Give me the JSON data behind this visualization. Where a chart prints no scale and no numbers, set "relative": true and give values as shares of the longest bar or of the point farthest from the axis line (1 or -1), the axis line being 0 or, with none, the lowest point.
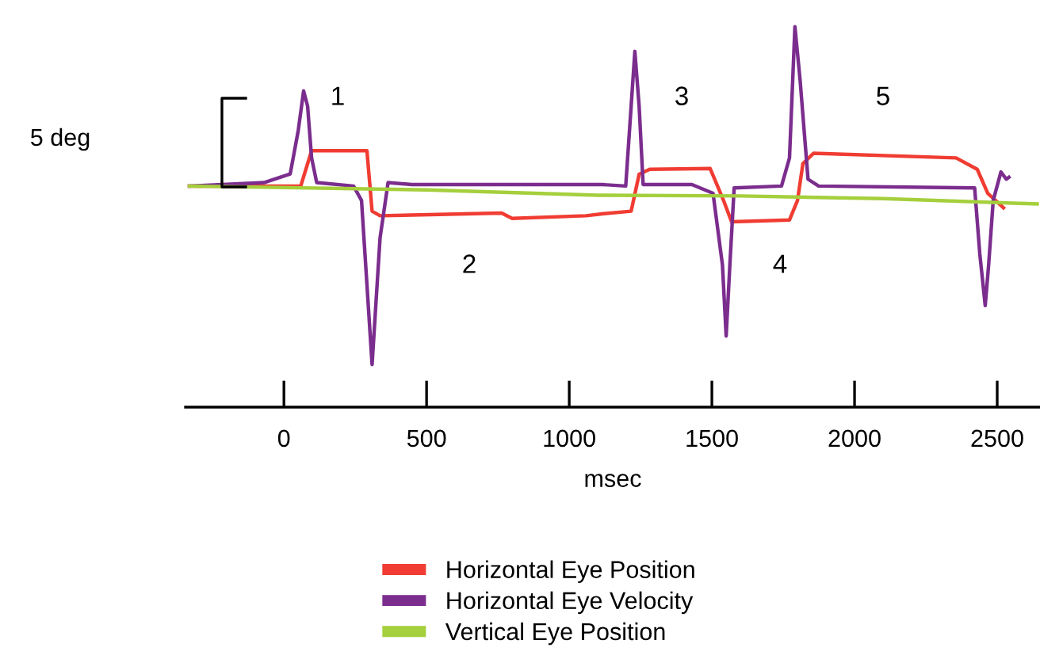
{
  "chart_data": {
    "type": "line",
    "relative": true,
    "xlabel": "msec",
    "xlim": [
      -345,
      2650
    ],
    "xticks": [
      0,
      500,
      1000,
      1500,
      2000,
      2500
    ],
    "tick_labels": "x",
    "legend": "bottom",
    "annotations": [
      "5 deg",
      "1",
      "2",
      "3",
      "4",
      "5"
    ],
    "series": [
      {
        "name": "Horizontal Eye Position",
        "color": "#f03c32",
        "x": [
          -331,
          59,
          97,
          291,
          309,
          337,
          763,
          800,
          1059,
          1115,
          1217,
          1245,
          1282,
          1494,
          1541,
          1569,
          1772,
          1800,
          1819,
          1856,
          2356,
          2430,
          2467,
          2522
        ],
        "values": [
          0.581,
          0.581,
          0.674,
          0.674,
          0.515,
          0.503,
          0.51,
          0.496,
          0.503,
          0.508,
          0.515,
          0.612,
          0.625,
          0.627,
          0.543,
          0.487,
          0.492,
          0.543,
          0.64,
          0.667,
          0.655,
          0.625,
          0.562,
          0.524
        ]
      },
      {
        "name": "Horizontal Eye Velocity",
        "color": "#7b2d8e",
        "x": [
          -331,
          -70,
          22,
          50,
          69,
          83,
          97,
          115,
          244,
          272,
          309,
          337,
          365,
          448,
          1115,
          1198,
          1217,
          1230,
          1245,
          1259,
          1430,
          1504,
          1537,
          1550,
          1563,
          1578,
          1744,
          1772,
          1791,
          1809,
          1837,
          1874,
          2421,
          2439,
          2458,
          2470,
          2486,
          2513,
          2532,
          2541
        ],
        "values": [
          0.581,
          0.59,
          0.613,
          0.726,
          0.831,
          0.791,
          0.655,
          0.59,
          0.581,
          0.543,
          0.112,
          0.445,
          0.59,
          0.585,
          0.585,
          0.581,
          0.791,
          0.935,
          0.791,
          0.585,
          0.585,
          0.562,
          0.374,
          0.187,
          0.374,
          0.576,
          0.581,
          0.655,
          1,
          0.861,
          0.599,
          0.581,
          0.576,
          0.403,
          0.267,
          0.374,
          0.543,
          0.618,
          0.599,
          0.604
        ]
      },
      {
        "name": "Vertical Eye Position",
        "color": "#a5cf3c",
        "x": [
          -331,
          500,
          1100,
          1600,
          2100,
          2640
        ],
        "values": [
          0.581,
          0.571,
          0.557,
          0.555,
          0.548,
          0.534
        ]
      }
    ]
  }
}
